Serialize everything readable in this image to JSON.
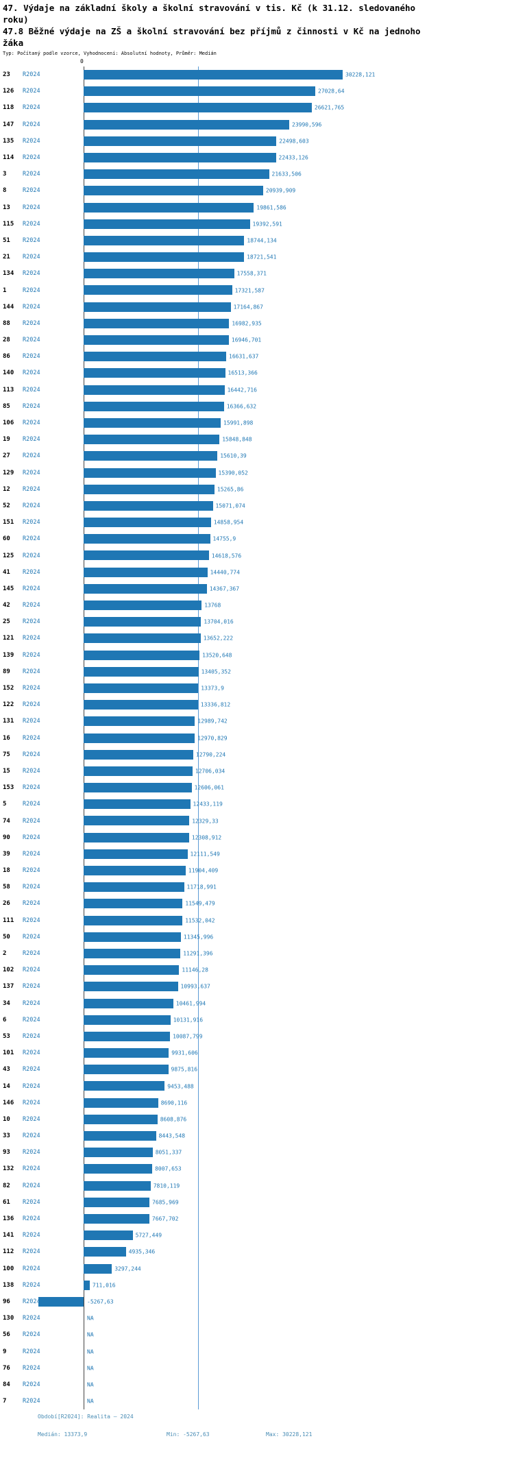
{
  "header": {
    "title_line1": "47. Výdaje na základní školy a školní stravování v tis. Kč (k 31.12. sledovaného roku)",
    "title_line2": "47.8 Běžné výdaje na ZŠ a školní stravování bez příjmů z činnosti v Kč na jednoho žáka",
    "subtitle": "Typ: Počítaný podle vzorce, Vyhodnocení: Absolutní hodnoty, Průměr: Medián"
  },
  "axis": {
    "zero_label": "0"
  },
  "footer": {
    "period_line": "Období[R2024]: Realita – 2024",
    "median_label": "Medián: 13373,9",
    "min_label": "Min: -5267,63",
    "max_label": "Max: 30228,121"
  },
  "colors": {
    "bar": "#1f77b4",
    "text_blue": "#1f77b4",
    "median_line": "#5b9bd5",
    "axis_line": "#444444",
    "footer_text": "#4a8db5",
    "title_text": "#000000"
  },
  "chart_data": {
    "type": "bar",
    "orientation": "horizontal",
    "title": "47. Výdaje na základní školy a školní stravování v tis. Kč (k 31.12. sledovaného roku) — 47.8 Běžné výdaje na ZŠ a školní stravování bez příjmů z činnosti v Kč na jednoho žáka",
    "series_label": "R2024",
    "median": 13373.9,
    "min": -5267.63,
    "max": 30228.121,
    "xlim": [
      -5267.63,
      30228.121
    ],
    "grid": false,
    "rows": [
      {
        "id": "23",
        "value": 30228.121,
        "display": "30228,121"
      },
      {
        "id": "126",
        "value": 27028.64,
        "display": "27028,64"
      },
      {
        "id": "118",
        "value": 26621.765,
        "display": "26621,765"
      },
      {
        "id": "147",
        "value": 23990.596,
        "display": "23990,596"
      },
      {
        "id": "135",
        "value": 22498.603,
        "display": "22498,603"
      },
      {
        "id": "114",
        "value": 22433.126,
        "display": "22433,126"
      },
      {
        "id": "3",
        "value": 21633.506,
        "display": "21633,506"
      },
      {
        "id": "8",
        "value": 20939.909,
        "display": "20939,909"
      },
      {
        "id": "13",
        "value": 19861.586,
        "display": "19861,586"
      },
      {
        "id": "115",
        "value": 19392.591,
        "display": "19392,591"
      },
      {
        "id": "51",
        "value": 18744.134,
        "display": "18744,134"
      },
      {
        "id": "21",
        "value": 18721.541,
        "display": "18721,541"
      },
      {
        "id": "134",
        "value": 17558.371,
        "display": "17558,371"
      },
      {
        "id": "1",
        "value": 17321.587,
        "display": "17321,587"
      },
      {
        "id": "144",
        "value": 17164.867,
        "display": "17164,867"
      },
      {
        "id": "88",
        "value": 16982.935,
        "display": "16982,935"
      },
      {
        "id": "28",
        "value": 16946.701,
        "display": "16946,701"
      },
      {
        "id": "86",
        "value": 16631.637,
        "display": "16631,637"
      },
      {
        "id": "140",
        "value": 16513.366,
        "display": "16513,366"
      },
      {
        "id": "113",
        "value": 16442.716,
        "display": "16442,716"
      },
      {
        "id": "85",
        "value": 16366.632,
        "display": "16366,632"
      },
      {
        "id": "106",
        "value": 15991.898,
        "display": "15991,898"
      },
      {
        "id": "19",
        "value": 15848.848,
        "display": "15848,848"
      },
      {
        "id": "27",
        "value": 15610.39,
        "display": "15610,39"
      },
      {
        "id": "129",
        "value": 15390.052,
        "display": "15390,052"
      },
      {
        "id": "12",
        "value": 15265.86,
        "display": "15265,86"
      },
      {
        "id": "52",
        "value": 15071.074,
        "display": "15071,074"
      },
      {
        "id": "151",
        "value": 14858.954,
        "display": "14858,954"
      },
      {
        "id": "60",
        "value": 14755.9,
        "display": "14755,9"
      },
      {
        "id": "125",
        "value": 14618.576,
        "display": "14618,576"
      },
      {
        "id": "41",
        "value": 14440.774,
        "display": "14440,774"
      },
      {
        "id": "145",
        "value": 14367.367,
        "display": "14367,367"
      },
      {
        "id": "42",
        "value": 13768,
        "display": "13768"
      },
      {
        "id": "25",
        "value": 13704.016,
        "display": "13704,016"
      },
      {
        "id": "121",
        "value": 13652.222,
        "display": "13652,222"
      },
      {
        "id": "139",
        "value": 13520.648,
        "display": "13520,648"
      },
      {
        "id": "89",
        "value": 13405.352,
        "display": "13405,352"
      },
      {
        "id": "152",
        "value": 13373.9,
        "display": "13373,9"
      },
      {
        "id": "122",
        "value": 13336.812,
        "display": "13336,812"
      },
      {
        "id": "131",
        "value": 12989.742,
        "display": "12989,742"
      },
      {
        "id": "16",
        "value": 12970.829,
        "display": "12970,829"
      },
      {
        "id": "75",
        "value": 12790.224,
        "display": "12790,224"
      },
      {
        "id": "15",
        "value": 12706.034,
        "display": "12706,034"
      },
      {
        "id": "153",
        "value": 12606.061,
        "display": "12606,061"
      },
      {
        "id": "5",
        "value": 12433.119,
        "display": "12433,119"
      },
      {
        "id": "74",
        "value": 12329.33,
        "display": "12329,33"
      },
      {
        "id": "90",
        "value": 12308.912,
        "display": "12308,912"
      },
      {
        "id": "39",
        "value": 12111.549,
        "display": "12111,549"
      },
      {
        "id": "18",
        "value": 11904.409,
        "display": "11904,409"
      },
      {
        "id": "58",
        "value": 11718.991,
        "display": "11718,991"
      },
      {
        "id": "26",
        "value": 11549.479,
        "display": "11549,479"
      },
      {
        "id": "111",
        "value": 11532.042,
        "display": "11532,042"
      },
      {
        "id": "50",
        "value": 11345.996,
        "display": "11345,996"
      },
      {
        "id": "2",
        "value": 11291.396,
        "display": "11291,396"
      },
      {
        "id": "102",
        "value": 11146.28,
        "display": "11146,28"
      },
      {
        "id": "137",
        "value": 10993.637,
        "display": "10993,637"
      },
      {
        "id": "34",
        "value": 10461.994,
        "display": "10461,994"
      },
      {
        "id": "6",
        "value": 10131.916,
        "display": "10131,916"
      },
      {
        "id": "53",
        "value": 10087.799,
        "display": "10087,799"
      },
      {
        "id": "101",
        "value": 9931.606,
        "display": "9931,606"
      },
      {
        "id": "43",
        "value": 9875.816,
        "display": "9875,816"
      },
      {
        "id": "14",
        "value": 9453.488,
        "display": "9453,488"
      },
      {
        "id": "146",
        "value": 8690.116,
        "display": "8690,116"
      },
      {
        "id": "10",
        "value": 8608.876,
        "display": "8608,876"
      },
      {
        "id": "33",
        "value": 8443.548,
        "display": "8443,548"
      },
      {
        "id": "93",
        "value": 8051.337,
        "display": "8051,337"
      },
      {
        "id": "132",
        "value": 8007.653,
        "display": "8007,653"
      },
      {
        "id": "82",
        "value": 7810.119,
        "display": "7810,119"
      },
      {
        "id": "61",
        "value": 7685.969,
        "display": "7685,969"
      },
      {
        "id": "136",
        "value": 7667.702,
        "display": "7667,702"
      },
      {
        "id": "141",
        "value": 5727.449,
        "display": "5727,449"
      },
      {
        "id": "112",
        "value": 4935.346,
        "display": "4935,346"
      },
      {
        "id": "100",
        "value": 3297.244,
        "display": "3297,244"
      },
      {
        "id": "138",
        "value": 711.016,
        "display": "711,016"
      },
      {
        "id": "96",
        "value": -5267.63,
        "display": "-5267,63"
      },
      {
        "id": "130",
        "value": null,
        "display": "NA"
      },
      {
        "id": "56",
        "value": null,
        "display": "NA"
      },
      {
        "id": "9",
        "value": null,
        "display": "NA"
      },
      {
        "id": "76",
        "value": null,
        "display": "NA"
      },
      {
        "id": "84",
        "value": null,
        "display": "NA"
      },
      {
        "id": "7",
        "value": null,
        "display": "NA"
      }
    ]
  }
}
